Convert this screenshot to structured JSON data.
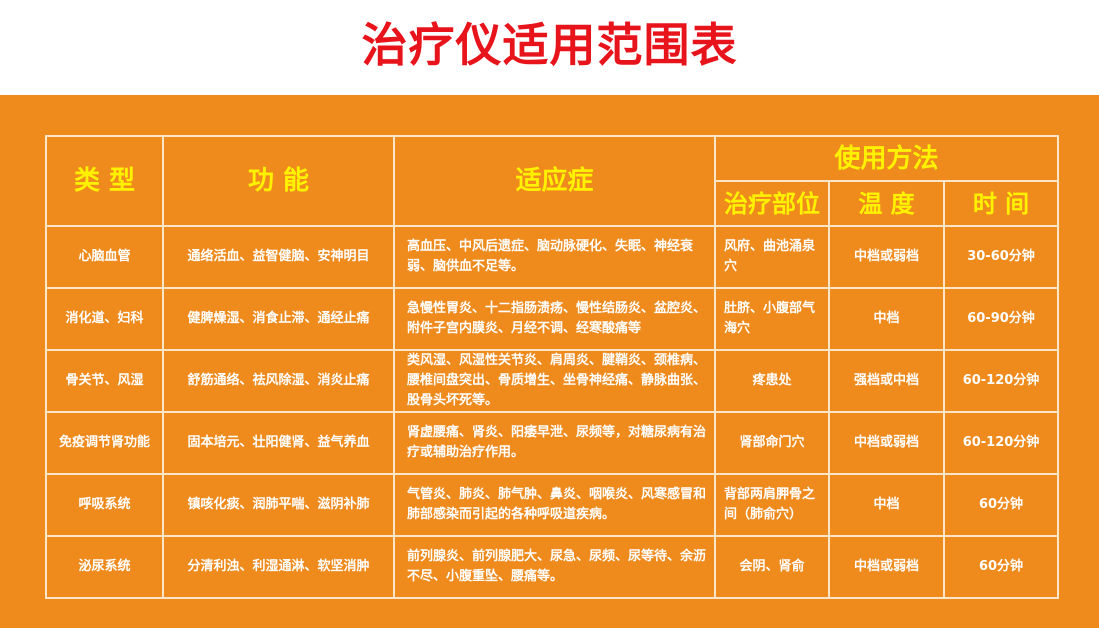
{
  "title": "治疗仪适用范围表",
  "headers": {
    "category": "类 型",
    "function": "功 能",
    "indication": "适应症",
    "usage": "使用方法",
    "location": "治疗部位",
    "temperature": "温 度",
    "time": "时 间"
  },
  "rows": [
    {
      "category": "心脑血管",
      "function": "通络活血、益智健脑、安神明目",
      "indication": "高血压、中风后遗症、脑动脉硬化、失眠、神经衰弱、脑供血不足等。",
      "location": "风府、曲池涌泉穴",
      "temperature": "中档或弱档",
      "time": "30-60分钟"
    },
    {
      "category": "消化道、妇科",
      "function": "健脾燥湿、消食止滞、通经止痛",
      "indication": "急慢性胃炎、十二指肠溃疡、慢性结肠炎、盆腔炎、附件子宫内膜炎、月经不调、经寒酸痛等",
      "location": "肚脐、小腹部气海穴",
      "temperature": "中档",
      "time": "60-90分钟"
    },
    {
      "category": "骨关节、风湿",
      "function": "舒筋通络、祛风除湿、消炎止痛",
      "indication": "类风湿、风湿性关节炎、肩周炎、腱鞘炎、颈椎病、腰椎间盘突出、骨质增生、坐骨神经痛、静脉曲张、股骨头坏死等。",
      "location": "疼患处",
      "temperature": "强档或中档",
      "time": "60-120分钟"
    },
    {
      "category": "免疫调节肾功能",
      "function": "固本培元、壮阳健肾、益气养血",
      "indication": "肾虚腰痛、肾炎、阳痿早泄、尿频等，对糖尿病有治疗或辅助治疗作用。",
      "location": "肾部命门穴",
      "temperature": "中档或弱档",
      "time": "60-120分钟"
    },
    {
      "category": "呼吸系统",
      "function": "镇咳化痰、润肺平喘、滋阴补肺",
      "indication": "气管炎、肺炎、肺气肿、鼻炎、咽喉炎、风寒感冒和肺部感染而引起的各种呼吸道疾病。",
      "location": "背部两肩胛骨之间（肺俞穴）",
      "temperature": "中档",
      "time": "60分钟"
    },
    {
      "category": "泌尿系统",
      "function": "分清利浊、利湿通淋、软坚消肿",
      "indication": "前列腺炎、前列腺肥大、尿急、尿频、尿等待、余沥不尽、小腹重坠、腰痛等。",
      "location": "会阴、肾俞",
      "temperature": "中档或弱档",
      "time": "60分钟"
    }
  ],
  "colors": {
    "title": "#e8141c",
    "background": "#ef8a1c",
    "header_text": "#fff200",
    "body_text": "#ffffff"
  }
}
